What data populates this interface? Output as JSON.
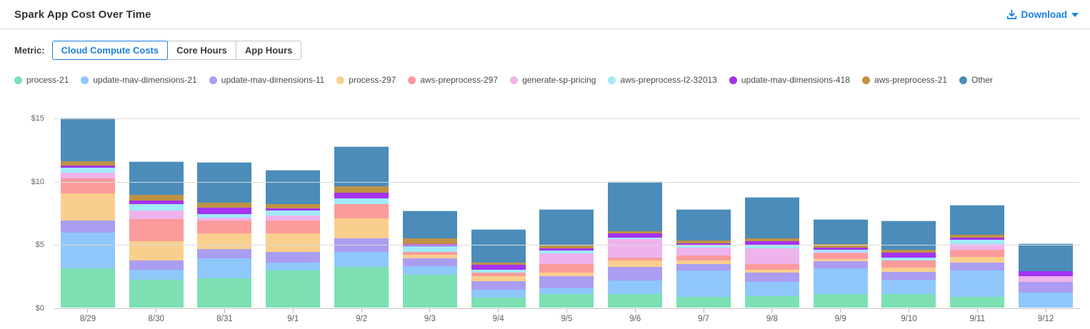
{
  "header": {
    "title": "Spark App Cost Over Time",
    "download_label": "Download"
  },
  "metric": {
    "label": "Metric:",
    "options": [
      {
        "label": "Cloud Compute Costs",
        "active": true
      },
      {
        "label": "Core Hours",
        "active": false
      },
      {
        "label": "App Hours",
        "active": false
      }
    ]
  },
  "colors": {
    "accent_blue": "#1b7fe4",
    "gridline": "#d9d9d9"
  },
  "chart_data": {
    "type": "bar",
    "stacked": true,
    "title": "Spark App Cost Over Time",
    "xlabel": "",
    "ylabel": "Cloud Compute Costs ($)",
    "ylim": [
      0,
      15
    ],
    "y_ticks": [
      {
        "label": "$15",
        "value": 15
      },
      {
        "label": "$10",
        "value": 10
      },
      {
        "label": "$5",
        "value": 5
      },
      {
        "label": "$0",
        "value": 0
      }
    ],
    "grid": true,
    "legend_position": "top",
    "categories": [
      "8/29",
      "8/30",
      "8/31",
      "9/1",
      "9/2",
      "9/3",
      "9/4",
      "9/5",
      "9/6",
      "9/7",
      "9/8",
      "9/9",
      "9/10",
      "9/11",
      "9/12"
    ],
    "series": [
      {
        "name": "process-21",
        "color": "#7ce0b3",
        "values": [
          3.1,
          2.2,
          2.3,
          2.95,
          3.2,
          2.6,
          0.8,
          1.05,
          1.1,
          0.85,
          0.9,
          1.05,
          1.05,
          0.85,
          0.0
        ]
      },
      {
        "name": "update-mav-dimensions-21",
        "color": "#8fc7fa",
        "values": [
          2.85,
          0.8,
          1.6,
          0.6,
          1.2,
          0.65,
          0.6,
          0.5,
          1.05,
          2.1,
          1.15,
          2.05,
          1.15,
          2.1,
          1.2
        ]
      },
      {
        "name": "update-mav-dimensions-11",
        "color": "#ab9df2",
        "values": [
          0.95,
          0.7,
          0.75,
          0.85,
          1.05,
          0.65,
          0.7,
          0.95,
          1.05,
          0.5,
          0.7,
          0.55,
          0.6,
          0.6,
          0.85
        ]
      },
      {
        "name": "process-297",
        "color": "#f9cf8d",
        "values": [
          2.1,
          1.55,
          1.2,
          1.45,
          1.6,
          0.25,
          0.4,
          0.25,
          0.5,
          0.25,
          0.25,
          0.2,
          0.35,
          0.45,
          0.0
        ]
      },
      {
        "name": "aws-preprocess-297",
        "color": "#fb9b9b",
        "values": [
          1.2,
          1.75,
          1.05,
          1.05,
          1.15,
          0.25,
          0.25,
          0.7,
          0.25,
          0.4,
          0.45,
          0.45,
          0.6,
          0.55,
          0.0
        ]
      },
      {
        "name": "generate-sp-pricing",
        "color": "#eeb3eb",
        "values": [
          0.45,
          0.7,
          0.2,
          0.35,
          0.0,
          0.0,
          0.0,
          0.85,
          1.45,
          0.65,
          1.25,
          0.1,
          0.0,
          0.5,
          0.45
        ]
      },
      {
        "name": "aws-preprocess-l2-32013",
        "color": "#a0eaf9",
        "values": [
          0.4,
          0.5,
          0.3,
          0.4,
          0.45,
          0.45,
          0.25,
          0.2,
          0.15,
          0.2,
          0.2,
          0.15,
          0.2,
          0.3,
          0.0
        ]
      },
      {
        "name": "update-mav-dimensions-418",
        "color": "#a433f2",
        "values": [
          0.2,
          0.25,
          0.5,
          0.2,
          0.45,
          0.2,
          0.4,
          0.2,
          0.3,
          0.15,
          0.35,
          0.2,
          0.4,
          0.2,
          0.4
        ]
      },
      {
        "name": "aws-preprocess-21",
        "color": "#bf9245",
        "values": [
          0.3,
          0.45,
          0.4,
          0.35,
          0.5,
          0.45,
          0.15,
          0.25,
          0.2,
          0.2,
          0.2,
          0.25,
          0.2,
          0.2,
          0.0
        ]
      },
      {
        "name": "Other",
        "color": "#4b8cba",
        "values": [
          3.45,
          2.65,
          3.2,
          2.7,
          3.15,
          2.2,
          2.65,
          2.85,
          3.95,
          2.5,
          3.3,
          2.0,
          2.35,
          2.4,
          2.2
        ]
      }
    ]
  }
}
